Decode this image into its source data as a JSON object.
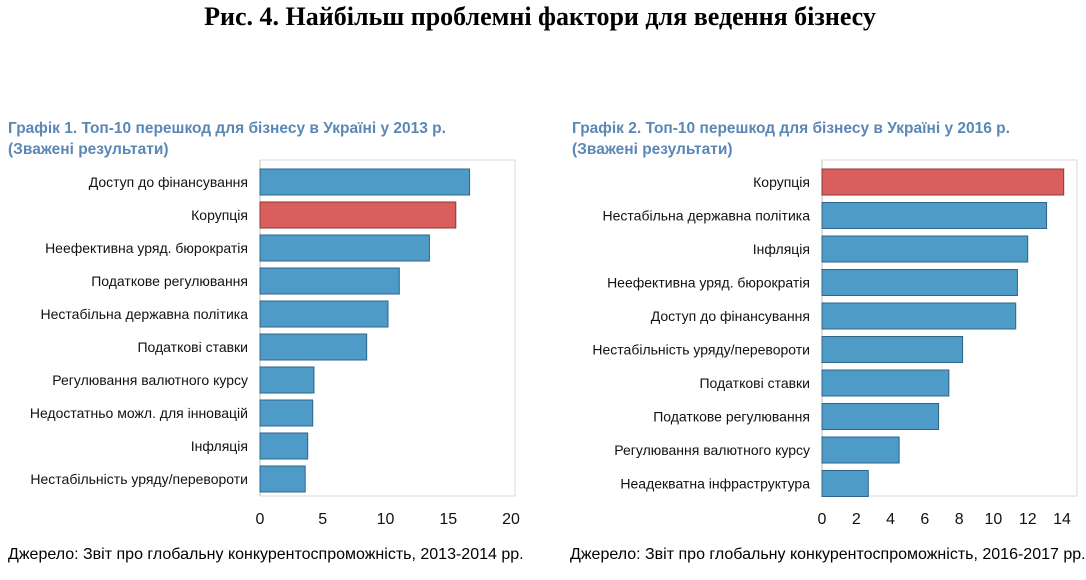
{
  "figure_title": "Рис. 4. Найбільш проблемні фактори для ведення бізнесу",
  "colors": {
    "bar": "#4f9bc7",
    "highlight": "#d95e5e",
    "title_blue": "#5b87b7"
  },
  "chart_data": [
    {
      "type": "bar",
      "orientation": "horizontal",
      "title": "Графік 1. Топ-10 перешкод для бізнесу в Україні у 2013 р.",
      "subtitle": "(Зважені результати)",
      "categories": [
        "Доступ до фінансування",
        "Корупція",
        "Неефективна уряд. бюрократія",
        "Податкове регулювання",
        "Нестабільна державна політика",
        "Податкові ставки",
        "Регулювання валютного курсу",
        "Недостатньо можл. для інновацій",
        "Інфляція",
        "Нестабільність уряду/перевороти"
      ],
      "values": [
        16.7,
        15.6,
        13.5,
        11.1,
        10.2,
        8.5,
        4.3,
        4.2,
        3.8,
        3.6
      ],
      "highlight": "Корупція",
      "xlim": [
        0,
        20
      ],
      "xticks": [
        "0",
        "5",
        "10",
        "15",
        "20"
      ],
      "source": "Джерело: Звіт про глобальну конкурентоспроможність, 2013-2014 рр."
    },
    {
      "type": "bar",
      "orientation": "horizontal",
      "title": "Графік 2. Топ-10 перешкод для бізнесу в Україні у 2016 р.",
      "subtitle": "(Зважені результати)",
      "categories": [
        "Корупція",
        "Нестабільна державна політика",
        "Інфляція",
        "Неефективна уряд. бюрократія",
        "Доступ до фінансування",
        "Нестабільність уряду/перевороти",
        "Податкові ставки",
        "Податкове регулювання",
        "Регулювання валютного курсу",
        "Неадекватна інфраструктура"
      ],
      "values": [
        14.1,
        13.1,
        12.0,
        11.4,
        11.3,
        8.2,
        7.4,
        6.8,
        4.5,
        2.7
      ],
      "highlight": "Корупція",
      "xlim": [
        0,
        14
      ],
      "xticks": [
        "0",
        "2",
        "4",
        "6",
        "8",
        "10",
        "12",
        "14"
      ],
      "source": "Джерело: Звіт про глобальну конкурентоспроможність, 2016-2017 рр."
    }
  ]
}
